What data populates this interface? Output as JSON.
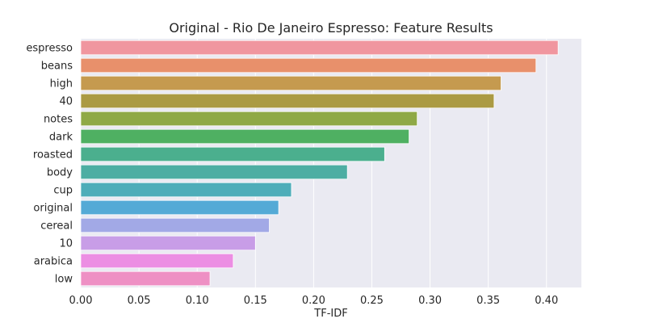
{
  "chart_data": {
    "type": "bar",
    "orientation": "horizontal",
    "title": "Original - Rio De Janeiro Espresso: Feature Results",
    "xlabel": "TF-IDF",
    "ylabel": "",
    "xlim": [
      0,
      0.43
    ],
    "xticks": [
      "0.00",
      "0.05",
      "0.10",
      "0.15",
      "0.20",
      "0.25",
      "0.30",
      "0.35",
      "0.40"
    ],
    "grid": true,
    "categories": [
      "espresso",
      "beans",
      "high",
      "40",
      "notes",
      "dark",
      "roasted",
      "body",
      "cup",
      "original",
      "cereal",
      "10",
      "arabica",
      "low"
    ],
    "values": [
      0.41,
      0.391,
      0.361,
      0.355,
      0.289,
      0.282,
      0.261,
      0.229,
      0.181,
      0.17,
      0.162,
      0.15,
      0.131,
      0.111
    ],
    "colors": [
      "#f0969f",
      "#e8906b",
      "#c59a4f",
      "#ab9a43",
      "#8fa946",
      "#4fb062",
      "#4baf8e",
      "#4daea3",
      "#4eadb9",
      "#54aad6",
      "#a2a9e6",
      "#c89de7",
      "#ec8ee3",
      "#ee90c4"
    ]
  }
}
